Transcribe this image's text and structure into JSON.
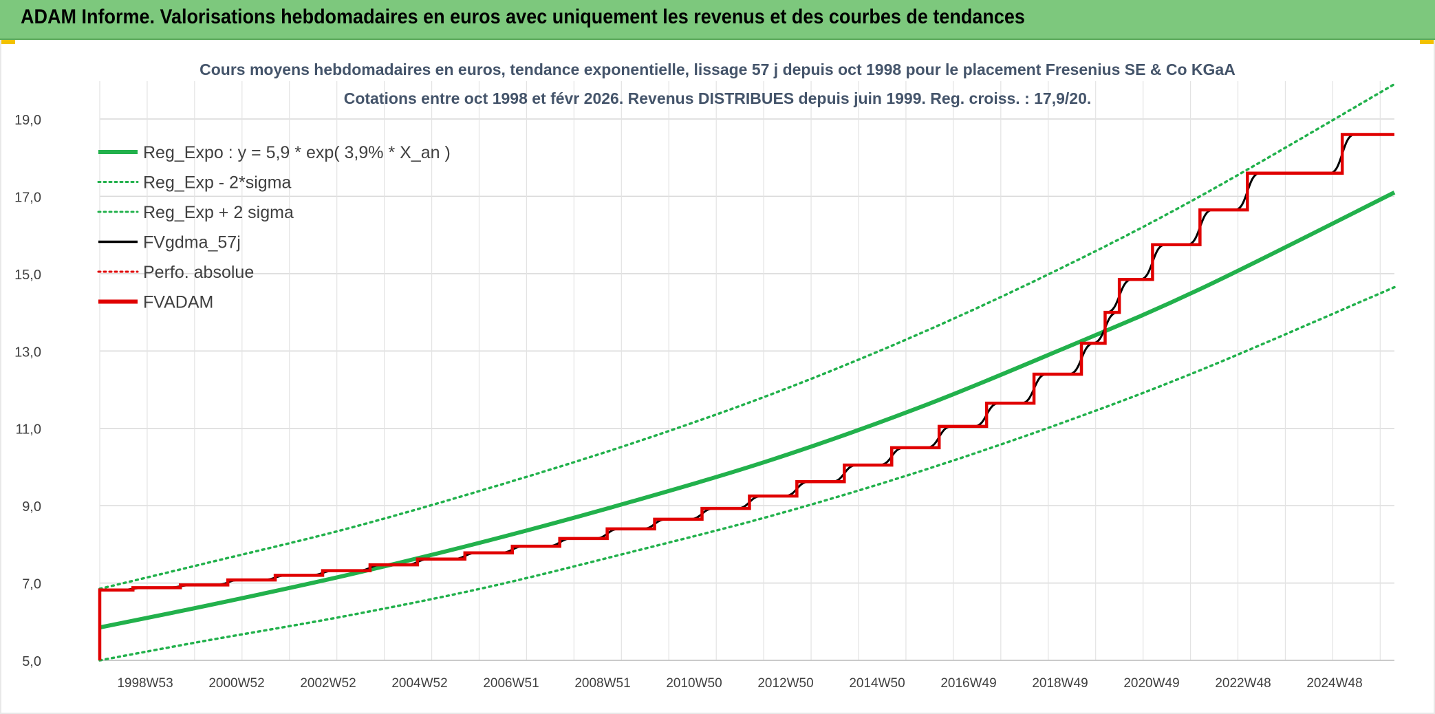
{
  "banner": {
    "title": "ADAM Informe. Valorisations hebdomadaires en euros avec uniquement les revenus et des courbes de tendances"
  },
  "chart_data": {
    "type": "line",
    "title": "Cours moyens hebdomadaires en euros, tendance exponentielle, lissage 57 j depuis oct 1998 pour le placement Fresenius SE & Co KGaA",
    "subtitle": "Cotations entre oct 1998 et févr 2026. Revenus DISTRIBUES depuis juin 1999. Reg. croiss. : 17,9/20.",
    "xlabel": "",
    "ylabel": "",
    "x_range": [
      1998.8,
      2026.1
    ],
    "ylim": [
      5,
      19
    ],
    "y_ticks": [
      "5,0",
      "7,0",
      "9,0",
      "11,0",
      "13,0",
      "15,0",
      "17,0",
      "19,0"
    ],
    "x_tick_labels": [
      "1998W53",
      "2000W52",
      "2002W52",
      "2004W52",
      "2006W51",
      "2008W51",
      "2010W50",
      "2012W50",
      "2014W50",
      "2016W49",
      "2018W49",
      "2020W49",
      "2022W48",
      "2024W48"
    ],
    "grid": true,
    "legend_position": "top-left",
    "legend": [
      {
        "label": "Reg_Expo : y = 5,9 * exp( 3,9% *  X_an )",
        "color": "#22b14c",
        "style": "solid-thick"
      },
      {
        "label": "Reg_Exp - 2*sigma",
        "color": "#22b14c",
        "style": "dotted"
      },
      {
        "label": "Reg_Exp + 2 sigma",
        "color": "#22b14c",
        "style": "dotted"
      },
      {
        "label": "FVgdma_57j",
        "color": "#000000",
        "style": "solid"
      },
      {
        "label": "Perfo. absolue",
        "color": "#e00000",
        "style": "dotted"
      },
      {
        "label": "FVADAM",
        "color": "#e00000",
        "style": "solid-thick"
      }
    ],
    "series": [
      {
        "name": "Reg_Expo : y = 5,9 * exp( 3,9% *  X_an )",
        "x": [
          1998.8,
          2001,
          2004,
          2007,
          2010,
          2013,
          2016,
          2019,
          2022,
          2026.1
        ],
        "y": [
          5.85,
          6.4,
          7.2,
          8.1,
          9.1,
          10.2,
          11.5,
          13.0,
          14.6,
          17.1
        ]
      },
      {
        "name": "Reg_Exp - 2*sigma",
        "x": [
          1998.8,
          2001,
          2004,
          2007,
          2010,
          2013,
          2016,
          2019,
          2022,
          2026.1
        ],
        "y": [
          5.0,
          5.5,
          6.15,
          6.9,
          7.8,
          8.75,
          9.85,
          11.1,
          12.5,
          14.65
        ]
      },
      {
        "name": "Reg_Exp + 2 sigma",
        "x": [
          1998.8,
          2001,
          2004,
          2007,
          2010,
          2013,
          2016,
          2019,
          2022,
          2026.1
        ],
        "y": [
          6.85,
          7.5,
          8.4,
          9.45,
          10.6,
          11.9,
          13.4,
          15.1,
          17.0,
          19.9
        ]
      },
      {
        "name": "FVADAM",
        "style": "step",
        "x0": 1998.8,
        "y0": 5.0,
        "steps": [
          [
            1998.8,
            6.82
          ],
          [
            1999.5,
            6.88
          ],
          [
            2000.5,
            6.95
          ],
          [
            2001.5,
            7.08
          ],
          [
            2002.5,
            7.2
          ],
          [
            2003.5,
            7.32
          ],
          [
            2004.5,
            7.47
          ],
          [
            2005.5,
            7.62
          ],
          [
            2006.5,
            7.78
          ],
          [
            2007.5,
            7.95
          ],
          [
            2008.5,
            8.15
          ],
          [
            2009.5,
            8.4
          ],
          [
            2010.5,
            8.65
          ],
          [
            2011.5,
            8.93
          ],
          [
            2012.5,
            9.25
          ],
          [
            2013.5,
            9.62
          ],
          [
            2014.5,
            10.05
          ],
          [
            2015.5,
            10.5
          ],
          [
            2016.5,
            11.05
          ],
          [
            2017.5,
            11.65
          ],
          [
            2018.5,
            12.4
          ],
          [
            2019.5,
            13.2
          ],
          [
            2020.0,
            14.0
          ],
          [
            2020.3,
            14.85
          ],
          [
            2021.0,
            15.75
          ],
          [
            2022.0,
            16.65
          ],
          [
            2023.0,
            17.6
          ],
          [
            2025.0,
            18.6
          ]
        ],
        "end": 2026.1
      }
    ]
  }
}
